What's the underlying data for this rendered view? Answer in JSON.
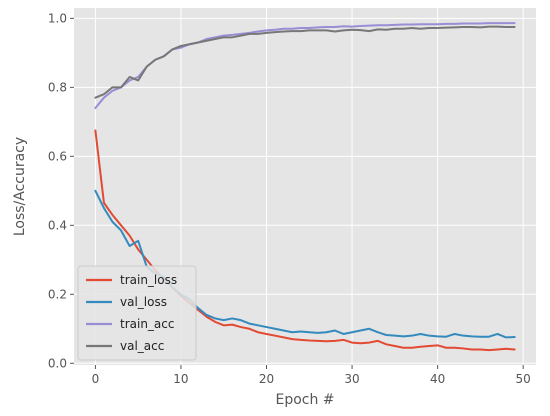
{
  "chart_data": {
    "type": "line",
    "xlabel": "Epoch #",
    "ylabel": "Loss/Accuracy",
    "xlim": [
      -2.5,
      51.5
    ],
    "ylim": [
      -0.005,
      1.03
    ],
    "x_ticks": [
      0,
      10,
      20,
      30,
      40,
      50
    ],
    "y_ticks": [
      0.0,
      0.2,
      0.4,
      0.6,
      0.8,
      1.0
    ],
    "x_tick_labels": [
      "0",
      "10",
      "20",
      "30",
      "40",
      "50"
    ],
    "y_tick_labels": [
      "0.0",
      "0.2",
      "0.4",
      "0.6",
      "0.8",
      "1.0"
    ],
    "grid": true,
    "legend_position": "lower-left",
    "background": "#e5e5e5",
    "x": [
      0,
      1,
      2,
      3,
      4,
      5,
      6,
      7,
      8,
      9,
      10,
      11,
      12,
      13,
      14,
      15,
      16,
      17,
      18,
      19,
      20,
      21,
      22,
      23,
      24,
      25,
      26,
      27,
      28,
      29,
      30,
      31,
      32,
      33,
      34,
      35,
      36,
      37,
      38,
      39,
      40,
      41,
      42,
      43,
      44,
      45,
      46,
      47,
      48,
      49
    ],
    "series": [
      {
        "name": "train_loss",
        "color": "#e24a33",
        "values": [
          0.675,
          0.465,
          0.43,
          0.4,
          0.37,
          0.33,
          0.3,
          0.27,
          0.245,
          0.22,
          0.195,
          0.175,
          0.155,
          0.135,
          0.12,
          0.11,
          0.112,
          0.105,
          0.1,
          0.09,
          0.085,
          0.08,
          0.075,
          0.07,
          0.068,
          0.066,
          0.065,
          0.064,
          0.065,
          0.068,
          0.06,
          0.058,
          0.06,
          0.065,
          0.055,
          0.05,
          0.045,
          0.045,
          0.048,
          0.05,
          0.052,
          0.045,
          0.045,
          0.043,
          0.04,
          0.04,
          0.038,
          0.04,
          0.042,
          0.04
        ]
      },
      {
        "name": "val_loss",
        "color": "#348abd",
        "values": [
          0.5,
          0.45,
          0.41,
          0.385,
          0.34,
          0.355,
          0.28,
          0.26,
          0.25,
          0.22,
          0.2,
          0.185,
          0.16,
          0.14,
          0.13,
          0.125,
          0.13,
          0.125,
          0.115,
          0.11,
          0.105,
          0.1,
          0.095,
          0.09,
          0.092,
          0.09,
          0.088,
          0.09,
          0.095,
          0.085,
          0.09,
          0.095,
          0.1,
          0.09,
          0.082,
          0.08,
          0.078,
          0.08,
          0.085,
          0.08,
          0.078,
          0.077,
          0.085,
          0.08,
          0.078,
          0.077,
          0.077,
          0.085,
          0.075,
          0.076
        ]
      },
      {
        "name": "train_acc",
        "color": "#988ed5",
        "values": [
          0.74,
          0.77,
          0.79,
          0.8,
          0.82,
          0.83,
          0.86,
          0.88,
          0.89,
          0.91,
          0.915,
          0.925,
          0.93,
          0.94,
          0.945,
          0.95,
          0.952,
          0.955,
          0.958,
          0.962,
          0.965,
          0.967,
          0.97,
          0.97,
          0.972,
          0.972,
          0.974,
          0.975,
          0.975,
          0.977,
          0.976,
          0.978,
          0.979,
          0.98,
          0.98,
          0.981,
          0.982,
          0.982,
          0.983,
          0.983,
          0.983,
          0.984,
          0.984,
          0.985,
          0.985,
          0.985,
          0.986,
          0.986,
          0.986,
          0.986
        ]
      },
      {
        "name": "val_acc",
        "color": "#777777",
        "values": [
          0.77,
          0.78,
          0.8,
          0.8,
          0.83,
          0.82,
          0.86,
          0.88,
          0.89,
          0.91,
          0.92,
          0.925,
          0.93,
          0.935,
          0.94,
          0.945,
          0.945,
          0.95,
          0.955,
          0.955,
          0.958,
          0.96,
          0.962,
          0.963,
          0.963,
          0.965,
          0.965,
          0.965,
          0.962,
          0.965,
          0.967,
          0.966,
          0.963,
          0.968,
          0.967,
          0.97,
          0.97,
          0.972,
          0.97,
          0.972,
          0.972,
          0.973,
          0.974,
          0.975,
          0.975,
          0.974,
          0.976,
          0.976,
          0.975,
          0.975
        ]
      }
    ]
  }
}
